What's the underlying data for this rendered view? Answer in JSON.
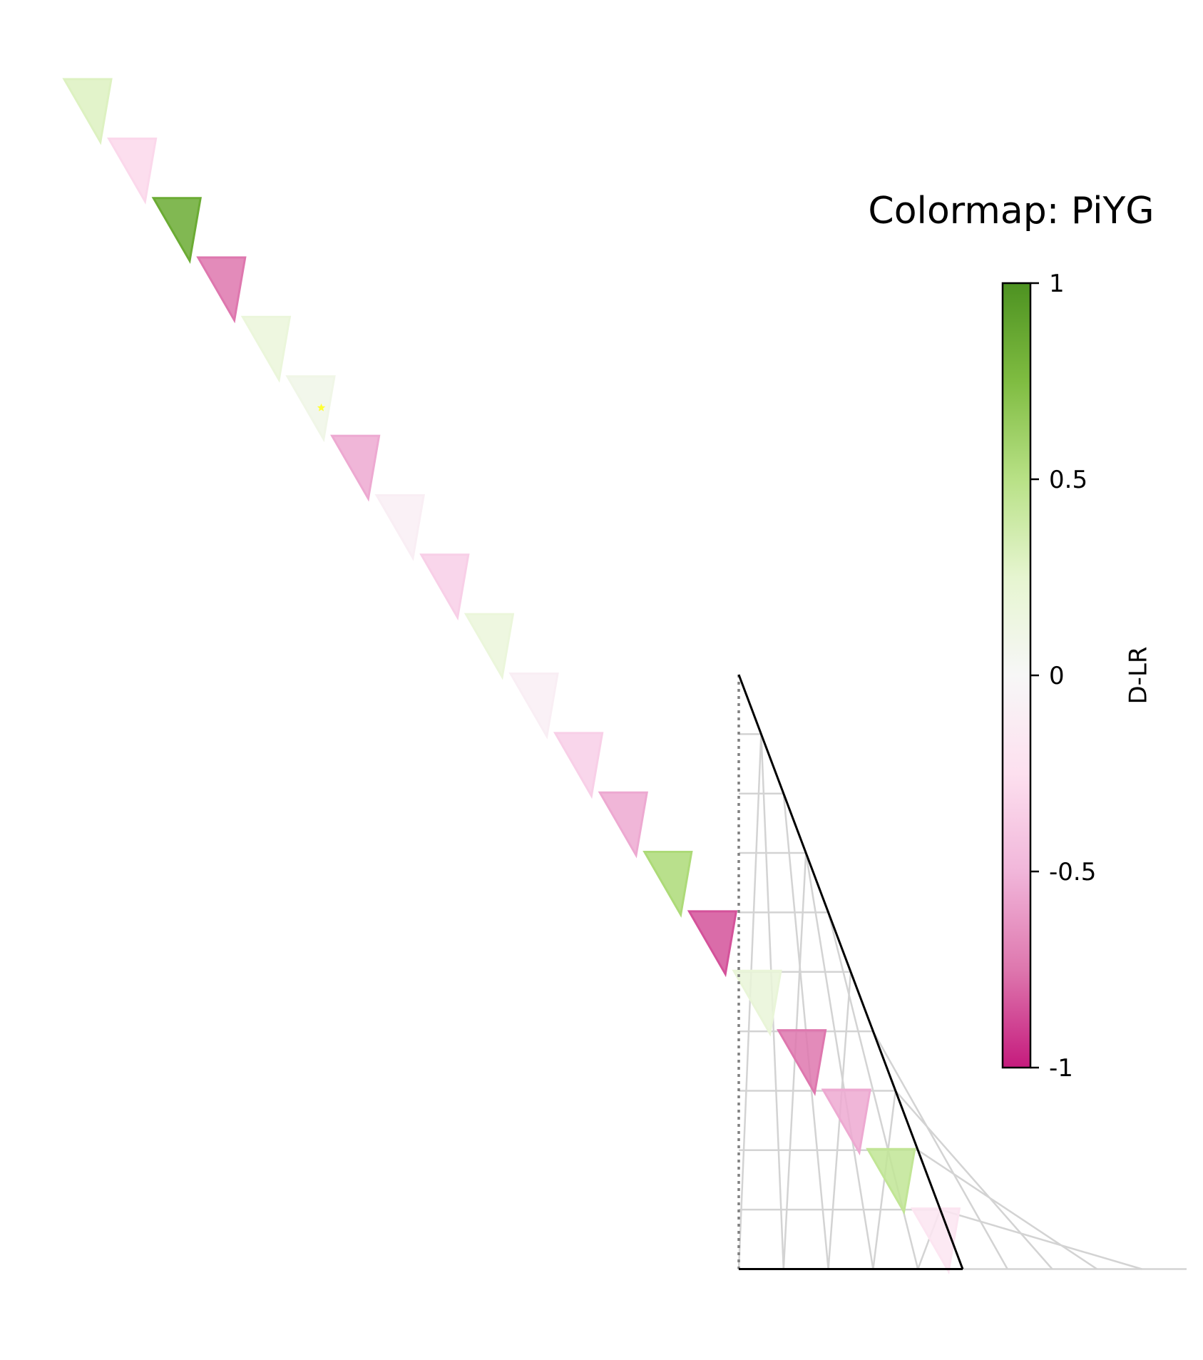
{
  "chart_data": {
    "type": "heatmap",
    "title": "Colormap: PiYG",
    "colormap": "PiYG",
    "colorbar": {
      "label": "D-LR",
      "range": [
        -1,
        1
      ],
      "ticks": [
        1,
        0.5,
        0,
        -0.5,
        -1
      ],
      "tick_labels": [
        "1",
        "0.5",
        "0",
        "-0.5",
        "-1"
      ],
      "gradient_colors": [
        "#c51b7d",
        "#de77ae",
        "#f1b6da",
        "#fde0ef",
        "#f7f7f7",
        "#e6f5d0",
        "#b8e186",
        "#7fbc41",
        "#4d9221"
      ]
    },
    "marked_index": 5,
    "marker_color": "#ffff33",
    "diagonal_cells": [
      {
        "index": 0,
        "value": 0.3
      },
      {
        "index": 1,
        "value": -0.3
      },
      {
        "index": 2,
        "value": 0.85
      },
      {
        "index": 3,
        "value": -0.75
      },
      {
        "index": 4,
        "value": 0.18
      },
      {
        "index": 5,
        "value": 0.1
      },
      {
        "index": 6,
        "value": -0.55
      },
      {
        "index": 7,
        "value": -0.1
      },
      {
        "index": 8,
        "value": -0.35
      },
      {
        "index": 9,
        "value": 0.18
      },
      {
        "index": 10,
        "value": -0.1
      },
      {
        "index": 11,
        "value": -0.35
      },
      {
        "index": 12,
        "value": -0.55
      },
      {
        "index": 13,
        "value": 0.55
      },
      {
        "index": 14,
        "value": -0.85
      },
      {
        "index": 15,
        "value": 0.2
      },
      {
        "index": 16,
        "value": -0.75
      },
      {
        "index": 17,
        "value": -0.55
      },
      {
        "index": 18,
        "value": 0.45
      },
      {
        "index": 19,
        "value": -0.2
      }
    ],
    "grid_rows": 10,
    "grid_on": true
  }
}
